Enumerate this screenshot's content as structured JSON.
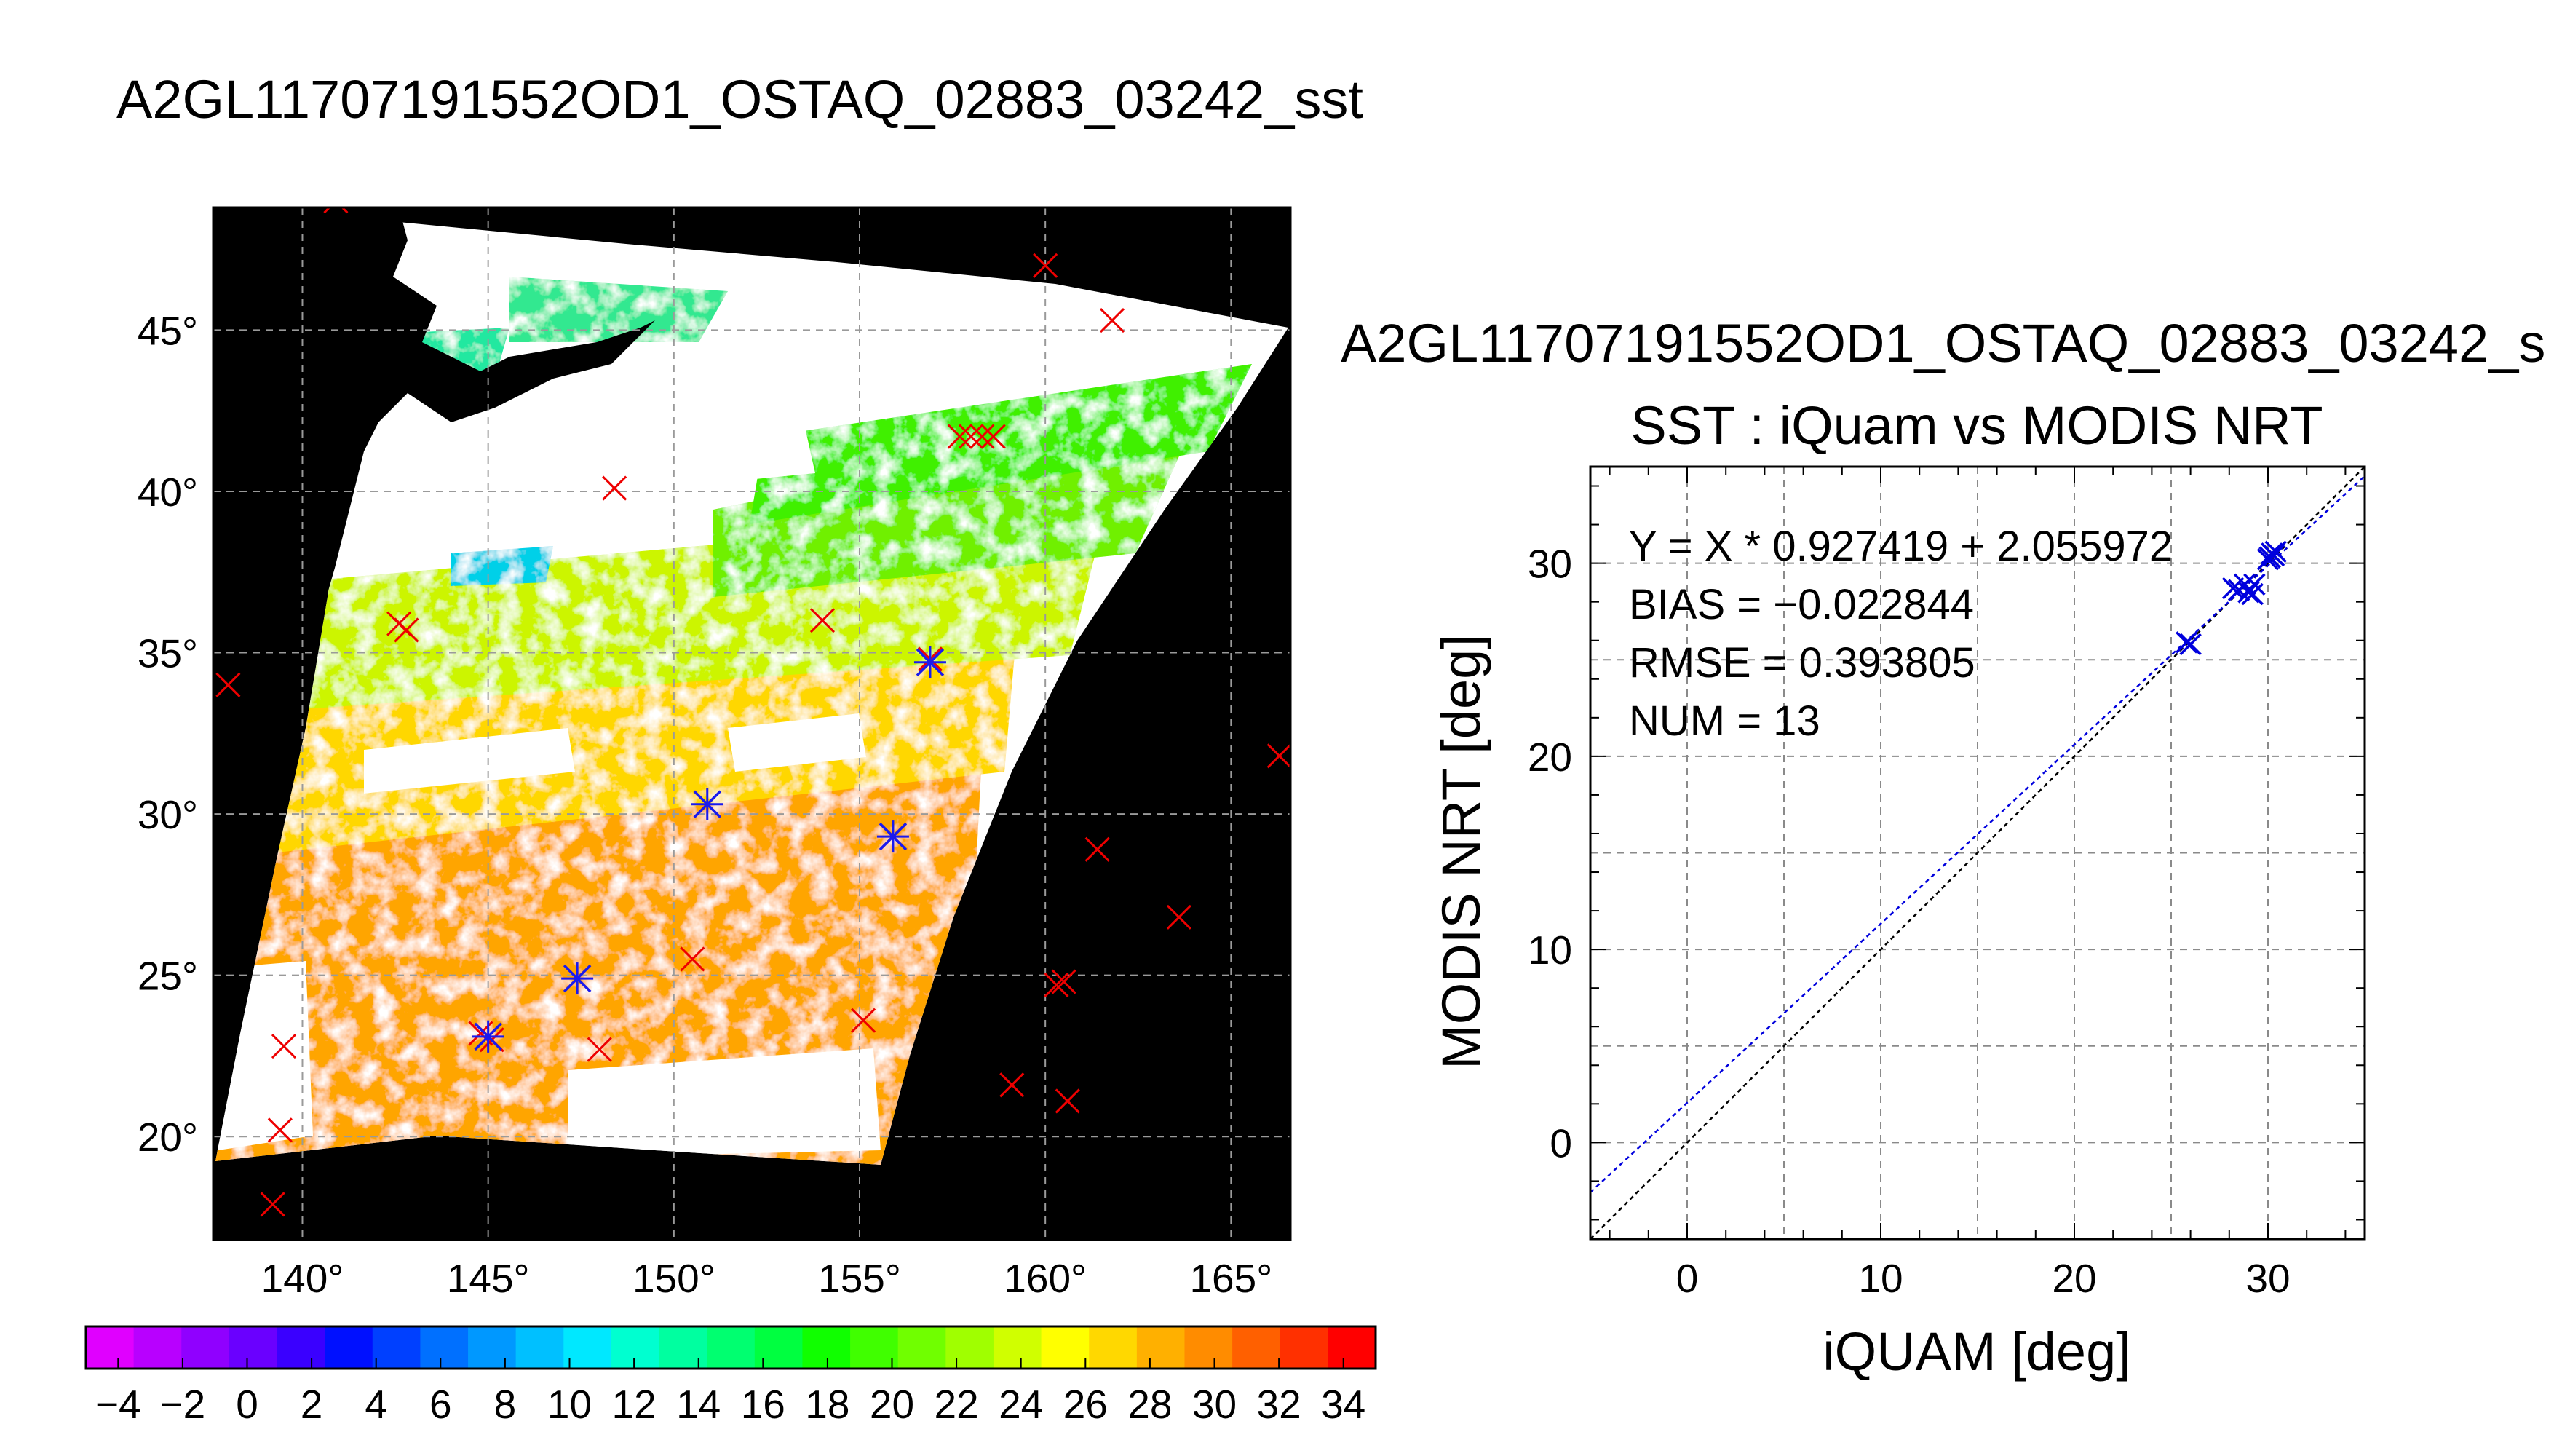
{
  "figure_title": "A2GL11707191552OD1_OSTAQ_02883_03242_sst",
  "chart_data": [
    {
      "type": "heatmap",
      "title": "",
      "lon_ticks": [
        140,
        145,
        150,
        155,
        160,
        165
      ],
      "lat_ticks": [
        20,
        25,
        30,
        35,
        40,
        45
      ],
      "lon_range": [
        137.6,
        166.6
      ],
      "lat_range": [
        16.8,
        48.8
      ],
      "degree_symbol": "°",
      "colorbar": {
        "ticks": [
          -4,
          -2,
          0,
          2,
          4,
          6,
          8,
          10,
          12,
          14,
          16,
          18,
          20,
          22,
          24,
          26,
          28,
          30,
          32,
          34
        ],
        "range": [
          -5,
          35
        ],
        "colors": [
          "#e000ff",
          "#b800ff",
          "#9000ff",
          "#6a00ff",
          "#3a00ff",
          "#0010ff",
          "#0040ff",
          "#0070ff",
          "#0098ff",
          "#00c0ff",
          "#00e8ff",
          "#00ffd0",
          "#00ffa0",
          "#00ff70",
          "#00ff40",
          "#10ff00",
          "#40ff00",
          "#70ff00",
          "#a0ff00",
          "#d0ff00",
          "#ffff00",
          "#ffd800",
          "#ffb000",
          "#ff8c00",
          "#ff6000",
          "#ff3000",
          "#ff0000"
        ]
      },
      "iquam_points": [
        {
          "lon": 140.9,
          "lat": 49.0
        },
        {
          "lon": 160.0,
          "lat": 47.0
        },
        {
          "lon": 161.8,
          "lat": 45.3
        },
        {
          "lon": 148.4,
          "lat": 40.1
        },
        {
          "lon": 157.7,
          "lat": 41.7
        },
        {
          "lon": 158.0,
          "lat": 41.7
        },
        {
          "lon": 158.3,
          "lat": 41.7
        },
        {
          "lon": 158.6,
          "lat": 41.7
        },
        {
          "lon": 142.6,
          "lat": 35.9
        },
        {
          "lon": 142.8,
          "lat": 35.7
        },
        {
          "lon": 138.0,
          "lat": 34.0
        },
        {
          "lon": 154.0,
          "lat": 36.0
        },
        {
          "lon": 156.9,
          "lat": 34.8
        },
        {
          "lon": 150.9,
          "lat": 30.3
        },
        {
          "lon": 155.9,
          "lat": 29.3
        },
        {
          "lon": 166.3,
          "lat": 31.8
        },
        {
          "lon": 161.4,
          "lat": 28.9
        },
        {
          "lon": 163.6,
          "lat": 26.8
        },
        {
          "lon": 147.4,
          "lat": 24.9
        },
        {
          "lon": 150.5,
          "lat": 25.5
        },
        {
          "lon": 155.1,
          "lat": 23.6
        },
        {
          "lon": 144.8,
          "lat": 23.2
        },
        {
          "lon": 145.1,
          "lat": 23.0
        },
        {
          "lon": 148.0,
          "lat": 22.7
        },
        {
          "lon": 139.5,
          "lat": 22.8
        },
        {
          "lon": 160.5,
          "lat": 24.8
        },
        {
          "lon": 160.3,
          "lat": 24.7
        },
        {
          "lon": 159.1,
          "lat": 21.6
        },
        {
          "lon": 160.6,
          "lat": 21.1
        },
        {
          "lon": 139.4,
          "lat": 20.2
        },
        {
          "lon": 139.2,
          "lat": 17.9
        }
      ],
      "matched_points": [
        {
          "lon": 156.9,
          "lat": 34.7
        },
        {
          "lon": 150.9,
          "lat": 30.3
        },
        {
          "lon": 155.9,
          "lat": 29.3
        },
        {
          "lon": 147.4,
          "lat": 24.9
        },
        {
          "lon": 145.0,
          "lat": 23.1
        }
      ]
    },
    {
      "type": "scatter",
      "title": "A2GL11707191552OD1_OSTAQ_02883_03242_s",
      "subtitle": "SST : iQuam vs MODIS NRT",
      "xlabel": "iQUAM [deg]",
      "ylabel": "MODIS NRT [deg]",
      "xlim": [
        -5,
        35
      ],
      "ylim": [
        -5,
        35
      ],
      "xticks": [
        0,
        10,
        20,
        30
      ],
      "yticks": [
        0,
        10,
        20,
        30
      ],
      "grid": true,
      "annotations": [
        "Y = X * 0.927419 + 2.055972",
        "BIAS = −0.022844",
        "RMSE = 0.393805",
        "NUM = 13"
      ],
      "regression": {
        "slope": 0.927419,
        "intercept": 2.055972,
        "color": "#0000dd"
      },
      "identity_line_color": "#000000",
      "point_color": "#0000dd",
      "points": [
        {
          "x": 25.8,
          "y": 25.9
        },
        {
          "x": 26.0,
          "y": 25.8
        },
        {
          "x": 28.2,
          "y": 28.7
        },
        {
          "x": 28.5,
          "y": 28.6
        },
        {
          "x": 28.8,
          "y": 28.9
        },
        {
          "x": 29.0,
          "y": 28.5
        },
        {
          "x": 29.2,
          "y": 28.4
        },
        {
          "x": 29.3,
          "y": 28.9
        },
        {
          "x": 30.0,
          "y": 30.2
        },
        {
          "x": 30.2,
          "y": 30.5
        },
        {
          "x": 30.4,
          "y": 30.6
        },
        {
          "x": 30.1,
          "y": 30.3
        },
        {
          "x": 30.3,
          "y": 30.4
        }
      ]
    }
  ]
}
